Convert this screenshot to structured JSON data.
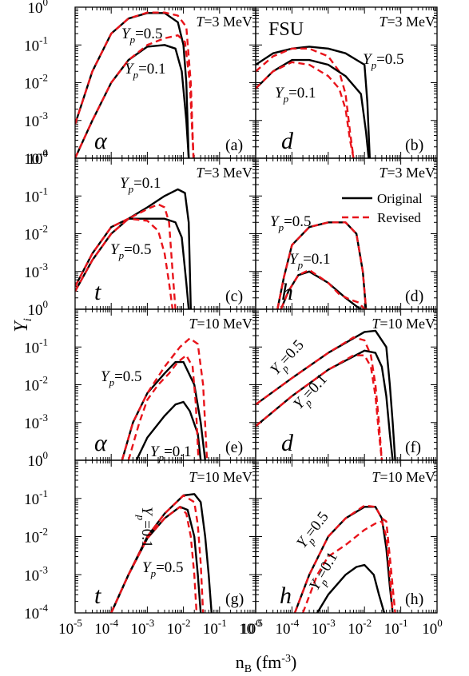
{
  "figure": {
    "ylabel_main": "Y",
    "ylabel_sub": "i",
    "xlabel_main": "n",
    "xlabel_sub": "B",
    "xlabel_unit": " (fm",
    "xlabel_exp": "-3",
    "xlabel_close": ")",
    "model_label": "FSU",
    "legend": {
      "original": "Original",
      "revised": "Revised"
    }
  },
  "x_ticks": [
    "10-5",
    "10-4",
    "10-3",
    "10-2",
    "10-1",
    "10 0"
  ],
  "x_tick_exps": [
    "-5",
    "-4",
    "-3",
    "-2",
    "-1",
    "0"
  ],
  "y_tick_labels_full": [
    "-4",
    "-3",
    "-2",
    "-1",
    "0"
  ],
  "y_tick_labels_upper": [
    "-3",
    "-2",
    "-1",
    "0"
  ],
  "chart_data": [
    {
      "type": "line",
      "panel": "(a)",
      "particle": "α",
      "temperature": "T=3 MeV",
      "x_scale": "log",
      "y_scale": "log",
      "xlim": [
        1e-05,
        1
      ],
      "ylim": [
        0.0001,
        1
      ],
      "series": [
        {
          "name": "Original",
          "label": "Yp=0.5",
          "x": [
            1e-05,
            3e-05,
            0.0001,
            0.0003,
            0.001,
            0.003,
            0.007,
            0.01,
            0.012,
            0.014
          ],
          "y": [
            0.0008,
            0.02,
            0.2,
            0.5,
            0.7,
            0.7,
            0.4,
            0.1,
            0.01,
            0.0001
          ]
        },
        {
          "name": "Revised",
          "label": "Yp=0.5",
          "x": [
            1e-05,
            3e-05,
            0.0001,
            0.0003,
            0.001,
            0.003,
            0.007,
            0.012,
            0.016,
            0.019
          ],
          "y": [
            0.0008,
            0.02,
            0.2,
            0.5,
            0.72,
            0.72,
            0.6,
            0.3,
            0.01,
            0.0001
          ]
        },
        {
          "name": "Original",
          "label": "Yp=0.1",
          "x": [
            1e-05,
            3e-05,
            0.0001,
            0.0003,
            0.001,
            0.003,
            0.006,
            0.009,
            0.012,
            0.014
          ],
          "y": [
            0.0001,
            0.001,
            0.01,
            0.04,
            0.09,
            0.1,
            0.08,
            0.02,
            0.001,
            0.0001
          ]
        },
        {
          "name": "Revised",
          "label": "Yp=0.1",
          "x": [
            1e-05,
            3e-05,
            0.0001,
            0.0003,
            0.001,
            0.003,
            0.007,
            0.011,
            0.015,
            0.019
          ],
          "y": [
            0.0001,
            0.001,
            0.01,
            0.04,
            0.1,
            0.15,
            0.18,
            0.12,
            0.01,
            0.0001
          ]
        }
      ]
    },
    {
      "type": "line",
      "panel": "(b)",
      "particle": "d",
      "temperature": "T=3 MeV",
      "x_scale": "log",
      "y_scale": "log",
      "xlim": [
        1e-05,
        1
      ],
      "ylim": [
        0.0001,
        1
      ],
      "series": [
        {
          "name": "Original",
          "label": "Yp=0.5",
          "x": [
            1e-05,
            3e-05,
            0.0001,
            0.0003,
            0.001,
            0.003,
            0.01,
            0.012,
            0.014
          ],
          "y": [
            0.03,
            0.06,
            0.08,
            0.09,
            0.08,
            0.06,
            0.03,
            0.003,
            0.0001
          ]
        },
        {
          "name": "Revised",
          "label": "Yp=0.5",
          "x": [
            1e-05,
            3e-05,
            0.0001,
            0.0003,
            0.001,
            0.002,
            0.003,
            0.004,
            0.005
          ],
          "y": [
            0.02,
            0.05,
            0.08,
            0.08,
            0.05,
            0.02,
            0.005,
            0.0005,
            0.0001
          ]
        },
        {
          "name": "Original",
          "label": "Yp=0.1",
          "x": [
            1e-05,
            3e-05,
            0.0001,
            0.0003,
            0.001,
            0.003,
            0.008,
            0.011,
            0.013
          ],
          "y": [
            0.007,
            0.02,
            0.04,
            0.04,
            0.03,
            0.015,
            0.005,
            0.0005,
            0.0001
          ]
        },
        {
          "name": "Revised",
          "label": "Yp=0.1",
          "x": [
            1e-05,
            3e-05,
            0.0001,
            0.0003,
            0.001,
            0.002,
            0.003,
            0.004,
            0.005
          ],
          "y": [
            0.007,
            0.02,
            0.035,
            0.03,
            0.015,
            0.007,
            0.002,
            0.0003,
            0.0001
          ]
        }
      ]
    },
    {
      "type": "line",
      "panel": "(c)",
      "particle": "t",
      "temperature": "T=3 MeV",
      "x_scale": "log",
      "y_scale": "log",
      "xlim": [
        1e-05,
        1
      ],
      "ylim": [
        0.0001,
        1
      ],
      "series": [
        {
          "name": "Original",
          "label": "Yp=0.1",
          "x": [
            1e-05,
            3e-05,
            0.0001,
            0.0003,
            0.001,
            0.003,
            0.007,
            0.011,
            0.014,
            0.016
          ],
          "y": [
            0.0003,
            0.002,
            0.01,
            0.025,
            0.05,
            0.1,
            0.15,
            0.12,
            0.02,
            0.0001
          ]
        },
        {
          "name": "Revised",
          "label": "Yp=0.1",
          "x": [
            1e-05,
            3e-05,
            0.0001,
            0.0003,
            0.001,
            0.002,
            0.003,
            0.004,
            0.005,
            0.006
          ],
          "y": [
            0.0003,
            0.002,
            0.01,
            0.025,
            0.045,
            0.06,
            0.05,
            0.02,
            0.001,
            0.0001
          ]
        },
        {
          "name": "Original",
          "label": "Yp=0.5",
          "x": [
            1e-05,
            3e-05,
            0.0001,
            0.0003,
            0.001,
            0.003,
            0.006,
            0.009,
            0.012,
            0.014
          ],
          "y": [
            0.0004,
            0.003,
            0.015,
            0.025,
            0.025,
            0.025,
            0.02,
            0.008,
            0.0005,
            0.0001
          ]
        },
        {
          "name": "Revised",
          "label": "Yp=0.5",
          "x": [
            1e-05,
            3e-05,
            0.0001,
            0.0003,
            0.001,
            0.002,
            0.003,
            0.004,
            0.005
          ],
          "y": [
            0.0004,
            0.003,
            0.015,
            0.025,
            0.022,
            0.012,
            0.003,
            0.0005,
            0.0001
          ]
        }
      ]
    },
    {
      "type": "line",
      "panel": "(d)",
      "particle": "h",
      "temperature": "T=3 MeV",
      "x_scale": "log",
      "y_scale": "log",
      "xlim": [
        1e-05,
        1
      ],
      "ylim": [
        0.0001,
        1
      ],
      "series": [
        {
          "name": "Original",
          "label": "Yp=0.5",
          "x": [
            4e-05,
            6e-05,
            0.0001,
            0.0003,
            0.001,
            0.003,
            0.006,
            0.009,
            0.011
          ],
          "y": [
            0.0001,
            0.0007,
            0.005,
            0.015,
            0.02,
            0.02,
            0.01,
            0.001,
            0.0001
          ]
        },
        {
          "name": "Revised",
          "label": "Yp=0.5",
          "x": [
            4e-05,
            6e-05,
            0.0001,
            0.0003,
            0.001,
            0.003,
            0.006,
            0.009,
            0.011
          ],
          "y": [
            0.0001,
            0.0007,
            0.005,
            0.015,
            0.02,
            0.02,
            0.01,
            0.001,
            0.0001
          ]
        },
        {
          "name": "Original",
          "label": "Yp=0.1",
          "x": [
            5e-05,
            8e-05,
            0.00015,
            0.0003,
            0.001,
            0.003,
            0.006,
            0.008
          ],
          "y": [
            0.0001,
            0.0003,
            0.0008,
            0.001,
            0.0005,
            0.0002,
            0.00012,
            0.0001
          ]
        },
        {
          "name": "Revised",
          "label": "Yp=0.1",
          "x": [
            5e-05,
            8e-05,
            0.00015,
            0.0003,
            0.001,
            0.002,
            0.004,
            0.007,
            0.01
          ],
          "y": [
            0.0001,
            0.0003,
            0.0008,
            0.0011,
            0.0005,
            0.00025,
            0.00018,
            0.00015,
            0.0001
          ]
        }
      ]
    },
    {
      "type": "line",
      "panel": "(e)",
      "particle": "α",
      "temperature": "T=10 MeV",
      "x_scale": "log",
      "y_scale": "log",
      "xlim": [
        1e-05,
        1
      ],
      "ylim": [
        0.0001,
        1
      ],
      "series": [
        {
          "name": "Original",
          "label": "Yp=0.5",
          "x": [
            0.0002,
            0.0004,
            0.001,
            0.003,
            0.006,
            0.01,
            0.02,
            0.03,
            0.04
          ],
          "y": [
            0.0001,
            0.001,
            0.006,
            0.02,
            0.04,
            0.04,
            0.01,
            0.001,
            0.0001
          ]
        },
        {
          "name": "Revised",
          "label": "Yp=0.5",
          "x": [
            0.0002,
            0.0004,
            0.001,
            0.003,
            0.008,
            0.015,
            0.025,
            0.035,
            0.045
          ],
          "y": [
            0.0001,
            0.001,
            0.006,
            0.03,
            0.1,
            0.17,
            0.12,
            0.01,
            0.0001
          ]
        },
        {
          "name": "Original",
          "label": "Yp=0.1",
          "x": [
            0.0005,
            0.001,
            0.003,
            0.006,
            0.01,
            0.015,
            0.025,
            0.03
          ],
          "y": [
            0.0001,
            0.0004,
            0.0015,
            0.003,
            0.0035,
            0.002,
            0.0005,
            0.0001
          ]
        },
        {
          "name": "Revised",
          "label": "Yp=0.1",
          "x": [
            0.0003,
            0.0006,
            0.001,
            0.002,
            0.004,
            0.007,
            0.012,
            0.018,
            0.022,
            0.026
          ],
          "y": [
            0.0001,
            0.001,
            0.004,
            0.01,
            0.02,
            0.04,
            0.06,
            0.03,
            0.003,
            0.0001
          ]
        }
      ]
    },
    {
      "type": "line",
      "panel": "(f)",
      "particle": "d",
      "temperature": "T=10 MeV",
      "x_scale": "log",
      "y_scale": "log",
      "xlim": [
        1e-05,
        1
      ],
      "ylim": [
        0.0001,
        1
      ],
      "series": [
        {
          "name": "Original",
          "label": "Yp=0.5",
          "x": [
            1e-05,
            0.0001,
            0.001,
            0.01,
            0.02,
            0.04,
            0.05,
            0.06,
            0.07
          ],
          "y": [
            0.003,
            0.015,
            0.07,
            0.25,
            0.27,
            0.1,
            0.01,
            0.001,
            0.0001
          ]
        },
        {
          "name": "Revised",
          "label": "Yp=0.5",
          "x": [
            1e-05,
            0.0001,
            0.001,
            0.005,
            0.01,
            0.015,
            0.02,
            0.025,
            0.03
          ],
          "y": [
            0.003,
            0.015,
            0.07,
            0.18,
            0.15,
            0.06,
            0.01,
            0.001,
            0.0001
          ]
        },
        {
          "name": "Original",
          "label": "Yp=0.1",
          "x": [
            1e-05,
            0.0001,
            0.001,
            0.01,
            0.02,
            0.03,
            0.04,
            0.05,
            0.06
          ],
          "y": [
            0.0008,
            0.005,
            0.025,
            0.08,
            0.07,
            0.03,
            0.005,
            0.0005,
            0.0001
          ]
        },
        {
          "name": "Revised",
          "label": "Yp=0.1",
          "x": [
            1e-05,
            0.0001,
            0.001,
            0.005,
            0.01,
            0.015,
            0.02,
            0.025,
            0.03
          ],
          "y": [
            0.0008,
            0.005,
            0.025,
            0.06,
            0.06,
            0.03,
            0.005,
            0.0005,
            0.0001
          ]
        }
      ]
    },
    {
      "type": "line",
      "panel": "(g)",
      "particle": "t",
      "temperature": "T=10 MeV",
      "x_scale": "log",
      "y_scale": "log",
      "xlim": [
        1e-05,
        1
      ],
      "ylim": [
        0.0001,
        1
      ],
      "series": [
        {
          "name": "Original",
          "label": "Yp=0.1",
          "x": [
            0.0001,
            0.0003,
            0.001,
            0.003,
            0.01,
            0.02,
            0.03,
            0.04,
            0.05,
            0.06
          ],
          "y": [
            0.0001,
            0.001,
            0.01,
            0.04,
            0.12,
            0.13,
            0.08,
            0.01,
            0.001,
            0.0001
          ]
        },
        {
          "name": "Revised",
          "label": "Yp=0.1",
          "x": [
            0.0001,
            0.0003,
            0.001,
            0.003,
            0.01,
            0.02,
            0.025,
            0.03,
            0.035
          ],
          "y": [
            0.0001,
            0.001,
            0.01,
            0.04,
            0.12,
            0.08,
            0.02,
            0.002,
            0.0001
          ]
        },
        {
          "name": "Original",
          "label": "Yp=0.5",
          "x": [
            0.0001,
            0.0003,
            0.001,
            0.003,
            0.008,
            0.013,
            0.02,
            0.025,
            0.03
          ],
          "y": [
            0.0001,
            0.001,
            0.009,
            0.03,
            0.06,
            0.05,
            0.01,
            0.001,
            0.0001
          ]
        },
        {
          "name": "Revised",
          "label": "Yp=0.5",
          "x": [
            0.0001,
            0.0003,
            0.001,
            0.003,
            0.008,
            0.012,
            0.016,
            0.02,
            0.023
          ],
          "y": [
            0.0001,
            0.001,
            0.009,
            0.03,
            0.06,
            0.04,
            0.01,
            0.001,
            0.0001
          ]
        }
      ]
    },
    {
      "type": "line",
      "panel": "(h)",
      "particle": "h",
      "temperature": "T=10 MeV",
      "x_scale": "log",
      "y_scale": "log",
      "xlim": [
        1e-05,
        1
      ],
      "ylim": [
        0.0001,
        1
      ],
      "series": [
        {
          "name": "Original",
          "label": "Yp=0.5",
          "x": [
            0.00012,
            0.0003,
            0.001,
            0.003,
            0.01,
            0.02,
            0.03,
            0.04,
            0.05,
            0.06
          ],
          "y": [
            0.0001,
            0.001,
            0.01,
            0.03,
            0.06,
            0.06,
            0.03,
            0.005,
            0.0005,
            0.0001
          ]
        },
        {
          "name": "Revised",
          "label": "Yp=0.5",
          "x": [
            0.00012,
            0.0003,
            0.001,
            0.003,
            0.01,
            0.02,
            0.03,
            0.04,
            0.05,
            0.07
          ],
          "y": [
            0.0001,
            0.001,
            0.01,
            0.03,
            0.065,
            0.06,
            0.03,
            0.025,
            0.003,
            0.0001
          ]
        },
        {
          "name": "Original",
          "label": "Yp=0.1",
          "x": [
            0.0005,
            0.001,
            0.003,
            0.006,
            0.01,
            0.018,
            0.025,
            0.035
          ],
          "y": [
            0.0001,
            0.0003,
            0.001,
            0.0016,
            0.0018,
            0.001,
            0.0003,
            0.0001
          ]
        },
        {
          "name": "Revised",
          "label": "Yp=0.1",
          "x": [
            0.0002,
            0.0005,
            0.001,
            0.003,
            0.01,
            0.02,
            0.03,
            0.04,
            0.05,
            0.06
          ],
          "y": [
            0.0001,
            0.001,
            0.003,
            0.006,
            0.015,
            0.022,
            0.025,
            0.01,
            0.001,
            0.0001
          ]
        }
      ]
    }
  ]
}
